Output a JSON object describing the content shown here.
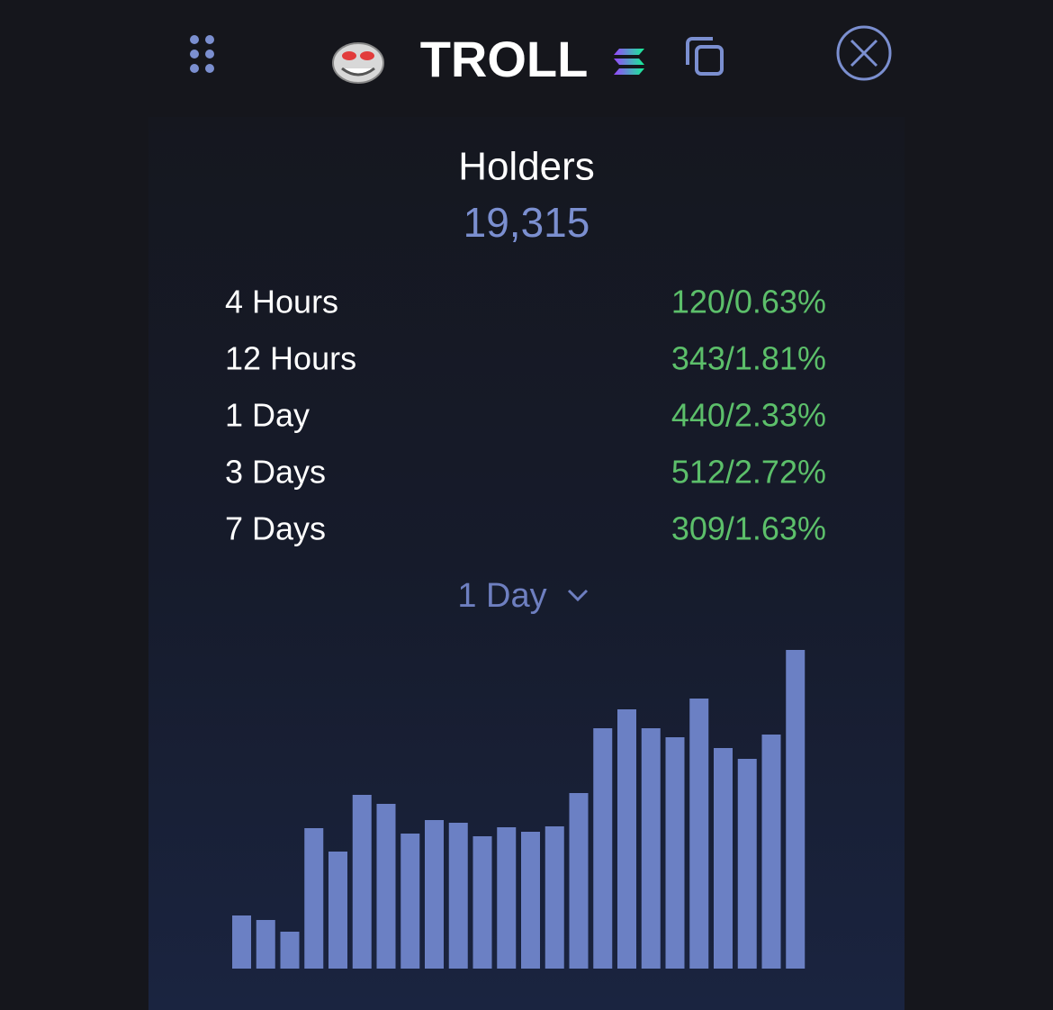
{
  "header": {
    "title": "TROLL"
  },
  "stat": {
    "label": "Holders",
    "value": "19,315"
  },
  "rows": [
    {
      "label": "4 Hours",
      "value": "120/0.63%"
    },
    {
      "label": "12 Hours",
      "value": "343/1.81%"
    },
    {
      "label": "1 Day",
      "value": "440/2.33%"
    },
    {
      "label": "3 Days",
      "value": "512/2.72%"
    },
    {
      "label": "7 Days",
      "value": "309/1.63%"
    }
  ],
  "selector": "1 Day",
  "chart_data": {
    "type": "bar",
    "color": "#6b80c4",
    "values": [
      59,
      54,
      41,
      156,
      130,
      193,
      183,
      150,
      165,
      162,
      147,
      157,
      152,
      158,
      195,
      267,
      288,
      267,
      257,
      300,
      245,
      233,
      260,
      354
    ]
  }
}
